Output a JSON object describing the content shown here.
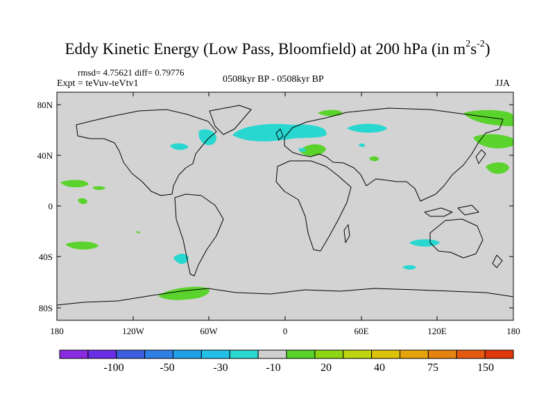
{
  "title": {
    "main": "Eddy Kinetic Energy (Low Pass, Bloomfield) at 200 hPa (in m",
    "sup1": "2",
    "s": "s",
    "sup2": "-2",
    "close": ")"
  },
  "stats": "rmsd= 4.75621 diff= 0.79776",
  "experiment": "Expt = teVuv-teVtv1",
  "period": "0508kyr BP - 0508kyr BP",
  "season": "JJA",
  "map": {
    "background_color": "#d3d3d3",
    "lon_ticks": [
      "180",
      "120W",
      "60W",
      "0",
      "60E",
      "120E",
      "180"
    ],
    "lat_ticks": [
      "80N",
      "40N",
      "0",
      "40S",
      "80S"
    ]
  },
  "colorbar": {
    "colors": [
      "#8a2be2",
      "#6a2ee6",
      "#3c5fe0",
      "#2f7fe6",
      "#1fa0e8",
      "#22c0e8",
      "#2ad8d0",
      "#cfcfcf",
      "#58d22a",
      "#8ed614",
      "#bdd40e",
      "#dcc20a",
      "#e6a30c",
      "#e6830e",
      "#e45a10",
      "#e0380c"
    ],
    "labels": [
      "-100",
      "-50",
      "-30",
      "-10",
      "20",
      "40",
      "75",
      "150"
    ]
  },
  "anomaly_colors": {
    "positive": "#5ad32c",
    "negative": "#28d7d0"
  }
}
